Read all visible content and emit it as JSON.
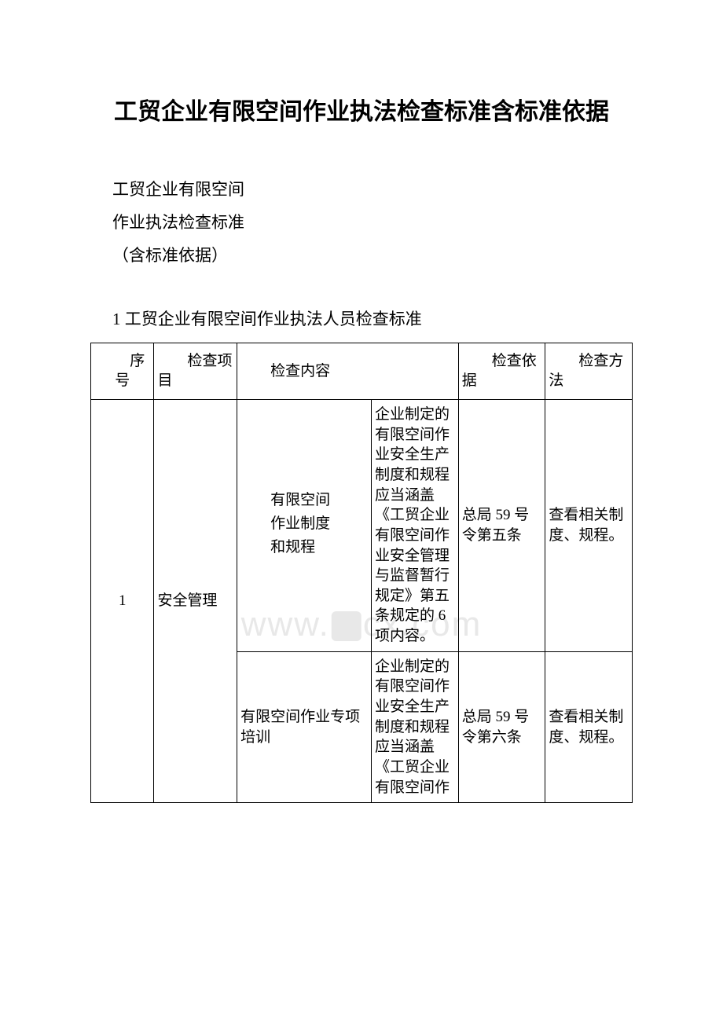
{
  "title": "工贸企业有限空间作业执法检查标准含标准依据",
  "intro": {
    "line1": "工贸企业有限空间",
    "line2": "作业执法检查标准",
    "line3": "（含标准依据）"
  },
  "section_heading": "1 工贸企业有限空间作业执法人员检查标准",
  "table": {
    "headers": {
      "seq": "序号",
      "item": "检查项目",
      "content": "检查内容",
      "basis": "检查依据",
      "method": "检查方法"
    },
    "rows": [
      {
        "seq": "1",
        "item": "安全管理",
        "content_a": "有限空间",
        "content_b": "作业制度",
        "content_c": "和规程",
        "detail": "企业制定的有限空间作业安全生产制度和规程应当涵盖《工贸企业有限空间作业安全管理与监督暂行规定》第五条规定的 6 项内容。",
        "basis": "总局 59 号令第五条",
        "method": "查看相关制度、规程。"
      },
      {
        "seq": "",
        "item": "",
        "content": "有限空间作业专项培训",
        "detail": "企业制定的有限空间作业安全生产制度和规程应当涵盖《工贸企业有限空间作",
        "basis": "总局 59 号令第六条",
        "method": "查看相关制度、规程。"
      }
    ]
  },
  "watermark_text_left": "www.",
  "watermark_text_right": "cx.com",
  "colors": {
    "text": "#000000",
    "background": "#ffffff",
    "border": "#000000",
    "watermark": "#e8e8e8"
  }
}
